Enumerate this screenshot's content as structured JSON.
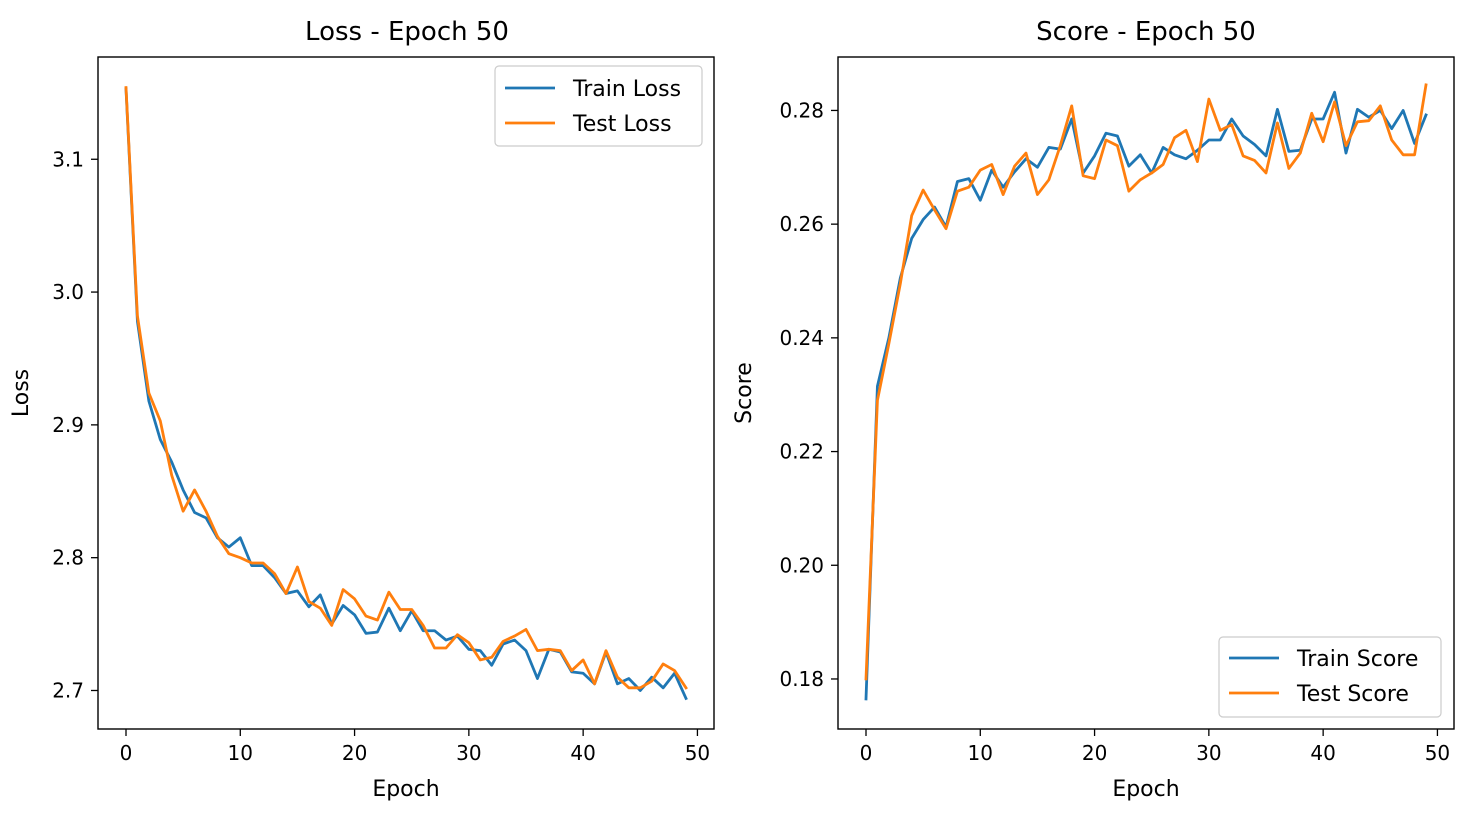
{
  "chart_data": [
    {
      "type": "line",
      "title": "Loss - Epoch 50",
      "xlabel": "Epoch",
      "ylabel": "Loss",
      "xlim": [
        -2.45,
        51.45
      ],
      "ylim": [
        2.671,
        3.177
      ],
      "xticks": [
        0,
        10,
        20,
        30,
        40,
        50
      ],
      "xtick_labels": [
        "0",
        "10",
        "20",
        "30",
        "40",
        "50"
      ],
      "yticks": [
        2.7,
        2.8,
        2.9,
        3.0,
        3.1
      ],
      "ytick_labels": [
        "2.7",
        "2.8",
        "2.9",
        "3.0",
        "3.1"
      ],
      "grid": false,
      "legend_position": "top-right",
      "x": [
        0,
        1,
        2,
        3,
        4,
        5,
        6,
        7,
        8,
        9,
        10,
        11,
        12,
        13,
        14,
        15,
        16,
        17,
        18,
        19,
        20,
        21,
        22,
        23,
        24,
        25,
        26,
        27,
        28,
        29,
        30,
        31,
        32,
        33,
        34,
        35,
        36,
        37,
        38,
        39,
        40,
        41,
        42,
        43,
        44,
        45,
        46,
        47,
        48,
        49
      ],
      "series": [
        {
          "name": "Train Loss",
          "color": "#1f77b4",
          "values": [
            3.153,
            2.978,
            2.918,
            2.889,
            2.872,
            2.851,
            2.834,
            2.83,
            2.815,
            2.808,
            2.815,
            2.794,
            2.794,
            2.785,
            2.773,
            2.775,
            2.763,
            2.772,
            2.75,
            2.764,
            2.757,
            2.743,
            2.744,
            2.762,
            2.745,
            2.76,
            2.745,
            2.745,
            2.738,
            2.741,
            2.731,
            2.73,
            2.719,
            2.735,
            2.738,
            2.73,
            2.709,
            2.731,
            2.729,
            2.714,
            2.713,
            2.705,
            2.729,
            2.705,
            2.709,
            2.7,
            2.71,
            2.702,
            2.713,
            2.694
          ]
        },
        {
          "name": "Test Loss",
          "color": "#ff7f0e",
          "values": [
            3.154,
            2.982,
            2.924,
            2.903,
            2.862,
            2.835,
            2.851,
            2.835,
            2.816,
            2.803,
            2.8,
            2.796,
            2.796,
            2.788,
            2.773,
            2.793,
            2.767,
            2.762,
            2.749,
            2.776,
            2.769,
            2.756,
            2.753,
            2.774,
            2.761,
            2.761,
            2.749,
            2.732,
            2.732,
            2.742,
            2.736,
            2.723,
            2.725,
            2.737,
            2.741,
            2.746,
            2.73,
            2.731,
            2.73,
            2.715,
            2.723,
            2.705,
            2.73,
            2.71,
            2.702,
            2.702,
            2.707,
            2.72,
            2.715,
            2.702
          ]
        }
      ]
    },
    {
      "type": "line",
      "title": "Score - Epoch 50",
      "xlabel": "Epoch",
      "ylabel": "Score",
      "xlim": [
        -2.45,
        51.45
      ],
      "ylim": [
        0.1712,
        0.2894
      ],
      "xticks": [
        0,
        10,
        20,
        30,
        40,
        50
      ],
      "xtick_labels": [
        "0",
        "10",
        "20",
        "30",
        "40",
        "50"
      ],
      "yticks": [
        0.18,
        0.2,
        0.22,
        0.24,
        0.26,
        0.28
      ],
      "ytick_labels": [
        "0.18",
        "0.20",
        "0.22",
        "0.24",
        "0.26",
        "0.28"
      ],
      "grid": false,
      "legend_position": "bottom-right",
      "x": [
        0,
        1,
        2,
        3,
        4,
        5,
        6,
        7,
        8,
        9,
        10,
        11,
        12,
        13,
        14,
        15,
        16,
        17,
        18,
        19,
        20,
        21,
        22,
        23,
        24,
        25,
        26,
        27,
        28,
        29,
        30,
        31,
        32,
        33,
        34,
        35,
        36,
        37,
        38,
        39,
        40,
        41,
        42,
        43,
        44,
        45,
        46,
        47,
        48,
        49
      ],
      "series": [
        {
          "name": "Train Score",
          "color": "#1f77b4",
          "values": [
            0.1765,
            0.2315,
            0.24,
            0.2505,
            0.2575,
            0.2608,
            0.263,
            0.2595,
            0.2675,
            0.268,
            0.2642,
            0.2695,
            0.2665,
            0.2692,
            0.2715,
            0.27,
            0.2735,
            0.2732,
            0.2785,
            0.269,
            0.272,
            0.276,
            0.2755,
            0.2702,
            0.2722,
            0.269,
            0.2735,
            0.2722,
            0.2715,
            0.273,
            0.2748,
            0.2748,
            0.2785,
            0.2755,
            0.274,
            0.272,
            0.2802,
            0.2728,
            0.273,
            0.2785,
            0.2785,
            0.2832,
            0.2725,
            0.2802,
            0.2788,
            0.28,
            0.2768,
            0.28,
            0.2742,
            0.2792
          ]
        },
        {
          "name": "Test Score",
          "color": "#ff7f0e",
          "values": [
            0.18,
            0.229,
            0.239,
            0.2495,
            0.2615,
            0.266,
            0.2625,
            0.2592,
            0.2658,
            0.2665,
            0.2695,
            0.2705,
            0.2652,
            0.2702,
            0.2725,
            0.2652,
            0.2678,
            0.2738,
            0.2808,
            0.2685,
            0.268,
            0.2748,
            0.2738,
            0.2658,
            0.2678,
            0.269,
            0.2705,
            0.2752,
            0.2765,
            0.271,
            0.282,
            0.2765,
            0.2775,
            0.272,
            0.2712,
            0.269,
            0.2778,
            0.2698,
            0.2725,
            0.2795,
            0.2745,
            0.2815,
            0.2738,
            0.278,
            0.2782,
            0.2808,
            0.2748,
            0.2722,
            0.2722,
            0.2845
          ]
        }
      ]
    }
  ]
}
